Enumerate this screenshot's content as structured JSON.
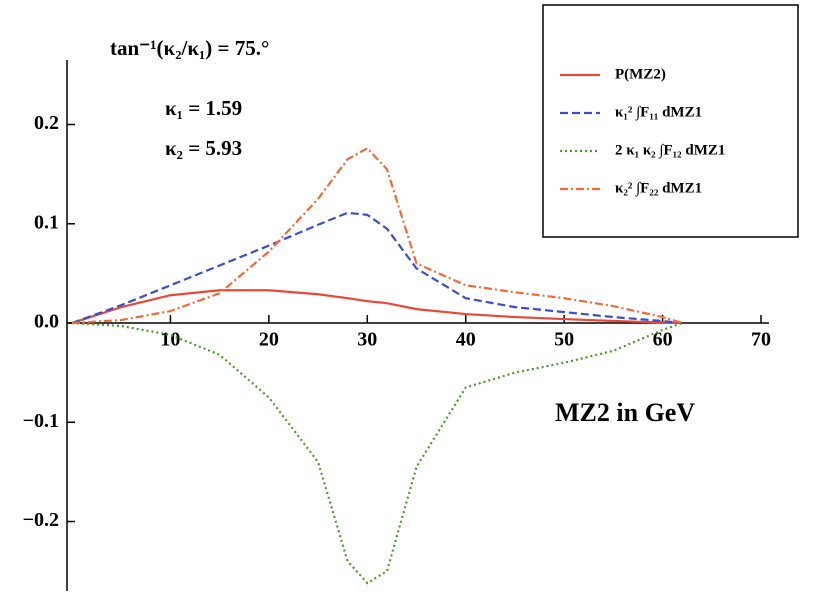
{
  "chart_data": {
    "type": "line",
    "annotations": [
      "tan⁻¹(κ₂/κ₁) = 75.°",
      "κ₁ = 1.59",
      "κ₂ = 5.93"
    ],
    "xlabel": "MZ2 in GeV",
    "x": [
      0,
      5,
      10,
      15,
      20,
      25,
      28,
      30,
      32,
      35,
      40,
      45,
      50,
      55,
      60,
      62
    ],
    "series": [
      {
        "name": "P(MZ2)",
        "color": "#e8473a",
        "dash": "solid",
        "values": [
          0,
          0.016,
          0.028,
          0.033,
          0.033,
          0.029,
          0.025,
          0.022,
          0.02,
          0.014,
          0.009,
          0.006,
          0.004,
          0.002,
          0.0005,
          0
        ]
      },
      {
        "name": "κ₁² ∫F₁₁ dMZ1",
        "color": "#3a4fc8",
        "dash": "dashed",
        "values": [
          0,
          0.018,
          0.038,
          0.058,
          0.078,
          0.099,
          0.111,
          0.109,
          0.095,
          0.055,
          0.025,
          0.016,
          0.011,
          0.006,
          0.002,
          0
        ]
      },
      {
        "name": "2 κ₁ κ₂ ∫F₁₂ dMZ1",
        "color": "#4a9a2a",
        "dash": "dotted",
        "values": [
          0,
          -0.003,
          -0.012,
          -0.032,
          -0.075,
          -0.14,
          -0.24,
          -0.262,
          -0.25,
          -0.145,
          -0.065,
          -0.05,
          -0.04,
          -0.028,
          -0.007,
          0
        ]
      },
      {
        "name": "κ₂² ∫F₂₂ dMZ1",
        "color": "#f06a3a",
        "dash": "dashdot",
        "values": [
          0,
          0.003,
          0.012,
          0.03,
          0.072,
          0.125,
          0.165,
          0.176,
          0.155,
          0.06,
          0.038,
          0.031,
          0.025,
          0.017,
          0.006,
          0
        ]
      }
    ],
    "xlim": [
      0,
      70
    ],
    "ylim": [
      -0.27,
      0.265
    ],
    "xticks": [
      10,
      20,
      30,
      40,
      50,
      60,
      70
    ],
    "yticks": [
      {
        "value": -0.2,
        "label": "−0.2"
      },
      {
        "value": -0.1,
        "label": "−0.1"
      },
      {
        "value": 0,
        "label": "0.0"
      },
      0.1,
      0.2
    ],
    "legend": "top-right"
  }
}
